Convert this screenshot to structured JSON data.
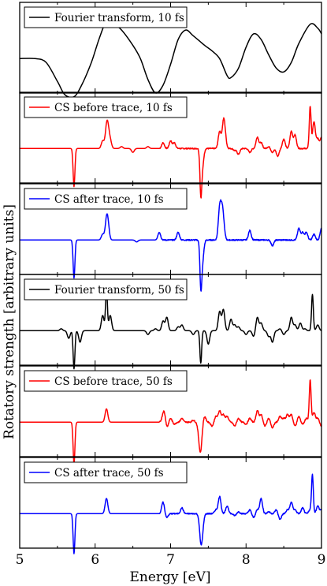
{
  "chart_data": {
    "type": "line",
    "xlabel": "Energy [eV]",
    "ylabel": "Rotatory strength [arbitrary units]",
    "xlim": [
      5,
      9
    ],
    "x_ticks": [
      "5",
      "6",
      "7",
      "8",
      "9"
    ],
    "y_ticks_labeled": false,
    "grid": false,
    "legend_placement": "top-left of each panel",
    "panels": [
      {
        "legend": "Fourier transform, 10 fs",
        "color": "#000000",
        "kind": "smooth",
        "ylim": [
          -1.1,
          1.2
        ],
        "points": [
          [
            5.0,
            0.0
          ],
          [
            5.2,
            0.0
          ],
          [
            5.35,
            -0.1
          ],
          [
            5.5,
            -0.6
          ],
          [
            5.6,
            -0.95
          ],
          [
            5.72,
            -1.0
          ],
          [
            5.82,
            -0.7
          ],
          [
            5.95,
            -0.1
          ],
          [
            6.05,
            0.5
          ],
          [
            6.15,
            1.0
          ],
          [
            6.22,
            0.95
          ],
          [
            6.35,
            0.75
          ],
          [
            6.5,
            0.35
          ],
          [
            6.6,
            0.0
          ],
          [
            6.7,
            -0.55
          ],
          [
            6.8,
            -0.9
          ],
          [
            6.9,
            -0.7
          ],
          [
            7.0,
            -0.15
          ],
          [
            7.1,
            0.5
          ],
          [
            7.2,
            0.75
          ],
          [
            7.3,
            0.6
          ],
          [
            7.45,
            0.35
          ],
          [
            7.55,
            0.2
          ],
          [
            7.65,
            0.0
          ],
          [
            7.75,
            -0.45
          ],
          [
            7.8,
            -0.5
          ],
          [
            7.9,
            -0.25
          ],
          [
            8.0,
            0.3
          ],
          [
            8.1,
            0.65
          ],
          [
            8.2,
            0.5
          ],
          [
            8.3,
            0.1
          ],
          [
            8.4,
            -0.25
          ],
          [
            8.5,
            -0.35
          ],
          [
            8.6,
            -0.1
          ],
          [
            8.7,
            0.4
          ],
          [
            8.85,
            0.9
          ],
          [
            8.95,
            0.8
          ],
          [
            9.0,
            0.65
          ]
        ]
      },
      {
        "legend": "CS before trace, 10 fs",
        "color": "#ff0000",
        "kind": "sparse",
        "ylim": [
          -1.1,
          1.2
        ],
        "peaks": [
          [
            5.72,
            -1.0
          ],
          [
            6.1,
            0.2
          ],
          [
            6.15,
            0.45
          ],
          [
            6.17,
            0.4
          ],
          [
            6.2,
            0.2
          ],
          [
            6.35,
            0.05
          ],
          [
            6.5,
            -0.1
          ],
          [
            6.7,
            0.05
          ],
          [
            6.9,
            0.15
          ],
          [
            7.0,
            0.2
          ],
          [
            7.05,
            0.15
          ],
          [
            7.4,
            -1.0
          ],
          [
            7.42,
            -0.5
          ],
          [
            7.65,
            0.45
          ],
          [
            7.7,
            0.6
          ],
          [
            7.72,
            0.3
          ],
          [
            7.85,
            -0.05
          ],
          [
            7.9,
            -0.15
          ],
          [
            8.05,
            -0.1
          ],
          [
            8.15,
            0.3
          ],
          [
            8.2,
            0.15
          ],
          [
            8.3,
            0.05
          ],
          [
            8.35,
            -0.1
          ],
          [
            8.42,
            -0.2
          ],
          [
            8.5,
            0.25
          ],
          [
            8.6,
            0.45
          ],
          [
            8.65,
            0.35
          ],
          [
            8.85,
            1.1
          ],
          [
            8.9,
            0.7
          ],
          [
            8.95,
            0.25
          ],
          [
            9.0,
            0.3
          ]
        ]
      },
      {
        "legend": "CS after trace, 10 fs",
        "color": "#0000ff",
        "kind": "sparse",
        "ylim": [
          -1.1,
          1.2
        ],
        "peaks": [
          [
            5.72,
            -1.0
          ],
          [
            6.15,
            0.45
          ],
          [
            6.17,
            0.35
          ],
          [
            6.1,
            0.15
          ],
          [
            6.55,
            -0.05
          ],
          [
            6.85,
            0.2
          ],
          [
            7.1,
            0.2
          ],
          [
            7.4,
            -1.0
          ],
          [
            7.42,
            -0.6
          ],
          [
            7.65,
            0.8
          ],
          [
            7.68,
            0.6
          ],
          [
            7.7,
            0.35
          ],
          [
            8.05,
            0.25
          ],
          [
            8.35,
            -0.15
          ],
          [
            8.7,
            0.3
          ],
          [
            8.75,
            0.2
          ],
          [
            8.8,
            0.2
          ],
          [
            8.9,
            0.15
          ],
          [
            9.0,
            0.3
          ]
        ]
      },
      {
        "legend": "Fourier transform, 50 fs",
        "color": "#000000",
        "kind": "sparse",
        "ylim": [
          -1.1,
          1.2
        ],
        "peaks": [
          [
            5.65,
            -0.2
          ],
          [
            5.72,
            -1.0
          ],
          [
            5.8,
            -0.3
          ],
          [
            5.55,
            0.05
          ],
          [
            6.1,
            0.4
          ],
          [
            6.15,
            1.1
          ],
          [
            6.2,
            0.4
          ],
          [
            6.6,
            0.0
          ],
          [
            6.7,
            -0.1
          ],
          [
            6.8,
            0.05
          ],
          [
            6.9,
            0.25
          ],
          [
            6.95,
            0.35
          ],
          [
            7.1,
            0.1
          ],
          [
            7.15,
            0.15
          ],
          [
            7.3,
            -0.1
          ],
          [
            7.4,
            -0.85
          ],
          [
            7.5,
            -0.35
          ],
          [
            7.55,
            0.0
          ],
          [
            7.65,
            0.5
          ],
          [
            7.7,
            0.55
          ],
          [
            7.8,
            0.3
          ],
          [
            7.85,
            0.15
          ],
          [
            7.9,
            0.1
          ],
          [
            8.0,
            -0.1
          ],
          [
            8.05,
            0.0
          ],
          [
            8.1,
            -0.15
          ],
          [
            8.15,
            0.35
          ],
          [
            8.2,
            0.2
          ],
          [
            8.3,
            -0.15
          ],
          [
            8.35,
            -0.3
          ],
          [
            8.45,
            0.05
          ],
          [
            8.5,
            -0.1
          ],
          [
            8.6,
            0.35
          ],
          [
            8.65,
            0.15
          ],
          [
            8.72,
            0.2
          ],
          [
            8.78,
            0.05
          ],
          [
            8.88,
            0.95
          ],
          [
            8.95,
            0.15
          ],
          [
            9.0,
            0.0
          ]
        ]
      },
      {
        "legend": "CS before trace, 50 fs",
        "color": "#ff0000",
        "kind": "sparse",
        "ylim": [
          -1.1,
          1.2
        ],
        "peaks": [
          [
            5.72,
            -1.1
          ],
          [
            6.15,
            0.35
          ],
          [
            6.9,
            0.15
          ],
          [
            6.92,
            0.2
          ],
          [
            6.95,
            -0.15
          ],
          [
            7.0,
            0.1
          ],
          [
            7.05,
            -0.05
          ],
          [
            7.15,
            0.1
          ],
          [
            7.3,
            0.05
          ],
          [
            7.38,
            -0.3
          ],
          [
            7.4,
            -0.6
          ],
          [
            7.45,
            0.15
          ],
          [
            7.55,
            -0.1
          ],
          [
            7.6,
            0.15
          ],
          [
            7.65,
            0.3
          ],
          [
            7.7,
            0.2
          ],
          [
            7.75,
            0.15
          ],
          [
            7.85,
            -0.1
          ],
          [
            7.9,
            0.1
          ],
          [
            8.0,
            -0.05
          ],
          [
            8.05,
            0.1
          ],
          [
            8.15,
            0.3
          ],
          [
            8.2,
            0.2
          ],
          [
            8.25,
            -0.1
          ],
          [
            8.3,
            0.1
          ],
          [
            8.35,
            -0.15
          ],
          [
            8.45,
            0.15
          ],
          [
            8.5,
            0.1
          ],
          [
            8.55,
            0.2
          ],
          [
            8.6,
            0.2
          ],
          [
            8.65,
            -0.1
          ],
          [
            8.7,
            0.15
          ],
          [
            8.75,
            -0.05
          ],
          [
            8.8,
            0.1
          ],
          [
            8.85,
            1.1
          ],
          [
            8.9,
            0.25
          ],
          [
            8.95,
            0.1
          ],
          [
            9.0,
            -0.1
          ]
        ]
      },
      {
        "legend": "CS after trace, 50 fs",
        "color": "#0000ff",
        "kind": "sparse",
        "ylim": [
          -1.1,
          1.2
        ],
        "peaks": [
          [
            5.72,
            -1.05
          ],
          [
            6.15,
            0.4
          ],
          [
            6.9,
            0.3
          ],
          [
            6.95,
            -0.1
          ],
          [
            7.15,
            0.15
          ],
          [
            7.4,
            -0.6
          ],
          [
            7.42,
            -0.35
          ],
          [
            7.6,
            0.1
          ],
          [
            7.65,
            0.45
          ],
          [
            7.75,
            0.2
          ],
          [
            7.85,
            -0.05
          ],
          [
            7.9,
            0.05
          ],
          [
            8.05,
            0.1
          ],
          [
            8.1,
            -0.1
          ],
          [
            8.15,
            0.1
          ],
          [
            8.2,
            0.4
          ],
          [
            8.3,
            0.05
          ],
          [
            8.4,
            0.1
          ],
          [
            8.45,
            -0.15
          ],
          [
            8.55,
            0.1
          ],
          [
            8.6,
            0.3
          ],
          [
            8.65,
            0.1
          ],
          [
            8.75,
            0.15
          ],
          [
            8.85,
            0.1
          ],
          [
            8.88,
            1.0
          ],
          [
            8.95,
            0.2
          ],
          [
            9.0,
            0.1
          ]
        ]
      }
    ]
  }
}
